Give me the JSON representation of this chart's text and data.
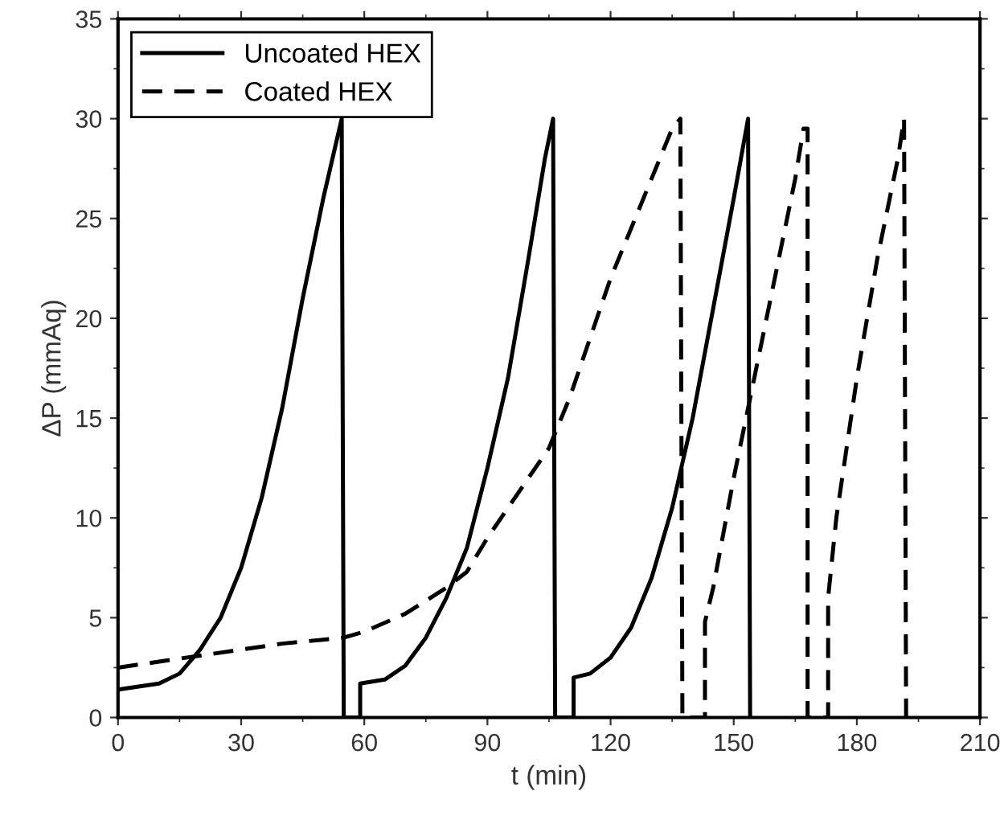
{
  "chart_data": {
    "type": "line",
    "xlabel": "t (min)",
    "ylabel": "ΔP (mmAq)",
    "xlim": [
      0,
      210
    ],
    "ylim": [
      0,
      35
    ],
    "xticks": [
      0,
      30,
      60,
      90,
      120,
      150,
      180,
      210
    ],
    "yticks": [
      0,
      5,
      10,
      15,
      20,
      25,
      30,
      35
    ],
    "grid": false,
    "legend": "top left",
    "marker": "none",
    "series": [
      {
        "name": "Uncoated HEX",
        "color": "#000000",
        "line_style": "solid",
        "x": [
          0,
          10,
          15,
          20,
          25,
          30,
          35,
          40,
          45,
          50,
          54.5,
          55,
          59,
          59,
          65,
          70,
          75,
          80,
          85,
          90,
          95,
          100,
          104,
          106,
          106.5,
          111,
          111,
          115,
          120,
          125,
          130,
          135,
          140,
          145,
          150,
          153.5,
          154
        ],
        "values": [
          1.4,
          1.7,
          2.2,
          3.4,
          5.0,
          7.5,
          11,
          15.5,
          21,
          26,
          30,
          0,
          0,
          1.7,
          1.9,
          2.6,
          4,
          6,
          8.5,
          12.5,
          17,
          23,
          28,
          30,
          0,
          0,
          2,
          2.2,
          3,
          4.5,
          7,
          10.5,
          15,
          20.5,
          26,
          30,
          0
        ]
      },
      {
        "name": "Coated HEX",
        "color": "#000000",
        "line_style": "dashed",
        "x": [
          0,
          10,
          20,
          30,
          40,
          50,
          55,
          60,
          70,
          80,
          85,
          90,
          95,
          100,
          105,
          110,
          115,
          120,
          125,
          130,
          135,
          137,
          137.5,
          143,
          143,
          145,
          150,
          155,
          160,
          165,
          167,
          168,
          168,
          173,
          173,
          175,
          180,
          185,
          190,
          191.5,
          192
        ],
        "values": [
          2.5,
          2.8,
          3.1,
          3.4,
          3.7,
          3.9,
          4,
          4.3,
          5.2,
          6.5,
          7.3,
          9,
          10.5,
          12,
          13.5,
          16,
          19,
          22,
          24.5,
          27,
          29.5,
          30,
          0,
          0,
          4.8,
          6.5,
          12,
          17,
          22,
          27,
          29.5,
          29.5,
          0,
          0,
          6,
          10,
          17,
          23,
          28,
          30,
          0
        ]
      }
    ]
  }
}
